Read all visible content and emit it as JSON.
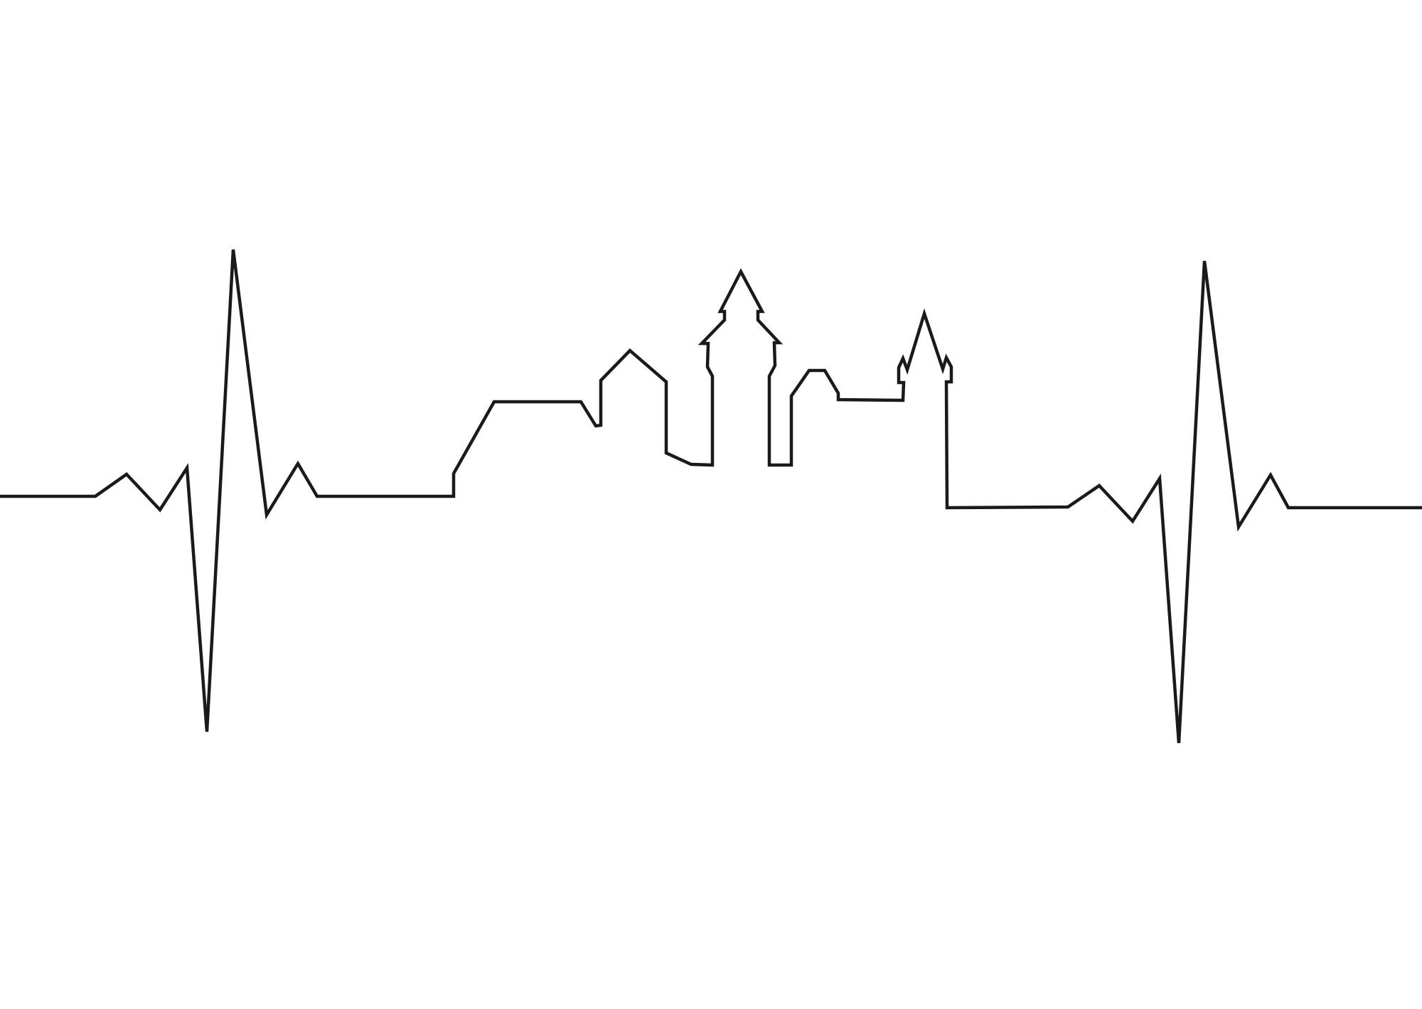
{
  "artwork": {
    "subject": "heartbeat-skyline",
    "colors": {
      "background": "#ffffff",
      "line": "#1a1a1a"
    }
  }
}
